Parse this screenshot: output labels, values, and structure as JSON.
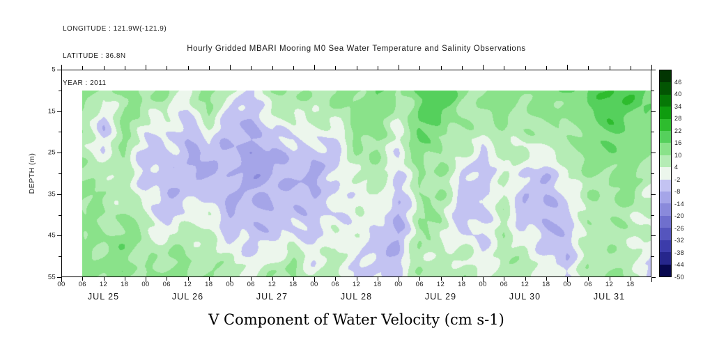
{
  "header": {
    "longitude_label": "LONGITUDE : 121.9W(-121.9)",
    "latitude_label": "LATITUDE : 36.8N",
    "year_label": "YEAR : 2011"
  },
  "chart_data": {
    "type": "heatmap",
    "title": "Hourly Gridded MBARI Mooring M0 Sea Water Temperature and Salinity Observations",
    "caption": "V Component of Water Velocity (cm s-1)",
    "ylabel": "DEPTH (m)",
    "ylim": [
      5,
      55
    ],
    "y_ticks": [
      5,
      15,
      25,
      35,
      45,
      55
    ],
    "y_minor_ticks": [
      10,
      20,
      30,
      40,
      50
    ],
    "x_days": [
      "JUL 25",
      "JUL 26",
      "JUL 27",
      "JUL 28",
      "JUL 29",
      "JUL 30",
      "JUL 31"
    ],
    "x_hour_labels": [
      "00",
      "06",
      "12",
      "18"
    ],
    "x_total_hours": 168,
    "legend_position": "right",
    "colorbar": {
      "levels": [
        46,
        40,
        34,
        28,
        22,
        16,
        10,
        4,
        -2,
        -8,
        -14,
        -20,
        -26,
        -32,
        -38,
        -44,
        -50
      ],
      "band_size": 6,
      "min": -50,
      "colors_top_to_bottom": [
        "#023502",
        "#035503",
        "#067806",
        "#0f9c0f",
        "#2ebc2e",
        "#55d05c",
        "#8ae28a",
        "#b5ecb5",
        "#ecf6ec",
        "#c3c3f2",
        "#a5a5e8",
        "#8a8adb",
        "#6f6fcd",
        "#5555bd",
        "#3c3caa",
        "#26268c",
        "#08084f"
      ]
    },
    "grid": {
      "depths": [
        10,
        15,
        20,
        25,
        30,
        35,
        40,
        45,
        50,
        55
      ],
      "start_hour": 6,
      "end_hour": 168,
      "step_hours": 6,
      "values": [
        [
          12,
          6,
          14,
          8,
          10,
          4,
          14,
          6,
          -4,
          8,
          12,
          8,
          10,
          14,
          16,
          8,
          18,
          20,
          12,
          10,
          14,
          12,
          16,
          12,
          18,
          22,
          20,
          16
        ],
        [
          10,
          -2,
          12,
          6,
          6,
          -4,
          10,
          -2,
          -8,
          4,
          8,
          4,
          8,
          12,
          14,
          6,
          16,
          18,
          10,
          8,
          12,
          10,
          12,
          10,
          16,
          20,
          18,
          14
        ],
        [
          8,
          -4,
          10,
          2,
          0,
          -8,
          2,
          -6,
          -10,
          -4,
          2,
          0,
          2,
          10,
          12,
          4,
          14,
          14,
          8,
          4,
          10,
          6,
          8,
          8,
          14,
          16,
          16,
          12
        ],
        [
          8,
          2,
          8,
          -3,
          -5,
          -8,
          -6,
          -8,
          -10,
          -9,
          -4,
          -5,
          -4,
          8,
          10,
          0,
          12,
          12,
          4,
          -3,
          8,
          2,
          2,
          6,
          12,
          14,
          12,
          10
        ],
        [
          9,
          6,
          8,
          -4,
          -6,
          -6,
          -8,
          -8,
          -9,
          -10,
          -6,
          -8,
          -5,
          6,
          8,
          -4,
          10,
          10,
          -2,
          -6,
          6,
          -4,
          -4,
          2,
          10,
          12,
          10,
          8
        ],
        [
          10,
          8,
          9,
          -2,
          -6,
          -4,
          -4,
          -8,
          -8,
          -9,
          -6,
          -7,
          -4,
          4,
          4,
          -7,
          10,
          8,
          -4,
          -6,
          6,
          -6,
          -8,
          -2,
          8,
          10,
          10,
          6
        ],
        [
          11,
          9,
          10,
          4,
          -4,
          0,
          2,
          -6,
          -7,
          -7,
          -4,
          -6,
          0,
          2,
          0,
          -8,
          8,
          8,
          -4,
          -5,
          6,
          -5,
          -8,
          -5,
          8,
          8,
          8,
          4
        ],
        [
          12,
          10,
          11,
          8,
          4,
          6,
          6,
          -4,
          -5,
          -4,
          0,
          -4,
          4,
          0,
          -3,
          -8,
          8,
          6,
          0,
          -4,
          8,
          0,
          -6,
          -6,
          6,
          8,
          8,
          2
        ],
        [
          13,
          12,
          12,
          10,
          8,
          10,
          8,
          2,
          0,
          2,
          8,
          0,
          8,
          -3,
          -4,
          -6,
          8,
          6,
          4,
          0,
          8,
          4,
          0,
          -6,
          6,
          8,
          6,
          -2
        ],
        [
          14,
          12,
          12,
          10,
          10,
          12,
          10,
          6,
          6,
          8,
          10,
          4,
          8,
          -4,
          -2,
          -4,
          10,
          8,
          6,
          4,
          8,
          6,
          4,
          -4,
          8,
          10,
          8,
          -4
        ]
      ]
    }
  }
}
